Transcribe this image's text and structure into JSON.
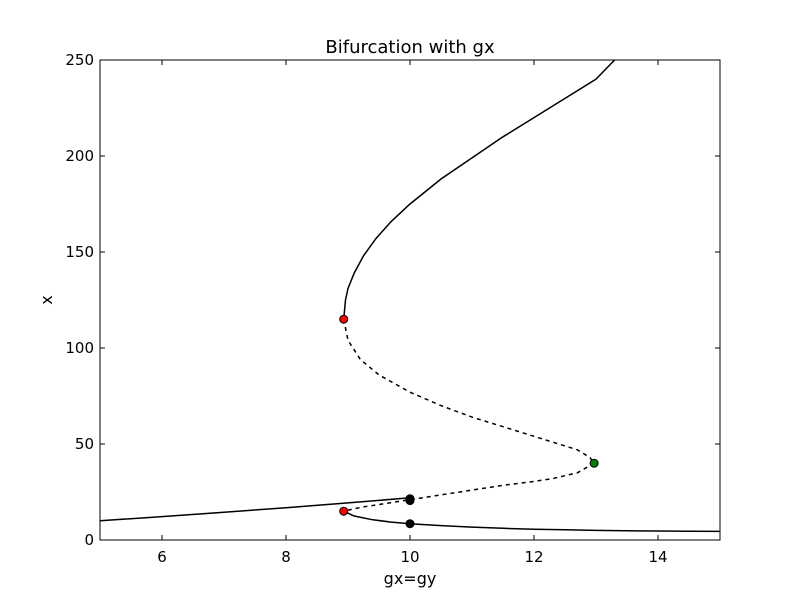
{
  "chart_data": {
    "type": "line",
    "title": "Bifurcation with gx",
    "xlabel": "gx=gy",
    "ylabel": "x",
    "xlim": [
      5,
      15
    ],
    "ylim": [
      0,
      250
    ],
    "xticks": [
      6,
      8,
      10,
      12,
      14
    ],
    "yticks": [
      0,
      50,
      100,
      150,
      200,
      250
    ],
    "grid": false,
    "series": [
      {
        "style": "solid",
        "x": [
          8.93,
          8.96,
          9.0,
          9.1,
          9.25,
          9.45,
          9.7,
          10.0,
          10.5,
          11.0,
          11.5,
          12.0,
          12.5,
          13.0,
          13.3
        ],
        "y": [
          115,
          125,
          131,
          139,
          148,
          157,
          166,
          175,
          188,
          199,
          210,
          220,
          230,
          240,
          250
        ]
      },
      {
        "style": "dashed",
        "x": [
          8.93,
          9.0,
          9.2,
          9.5,
          10.0,
          10.5,
          11.0,
          11.5,
          12.0,
          12.4,
          12.7,
          12.9,
          12.97
        ],
        "y": [
          115,
          104,
          94,
          86,
          77,
          70,
          64,
          59,
          54,
          50,
          47,
          43,
          40
        ]
      },
      {
        "style": "dashed",
        "x": [
          12.97,
          12.7,
          12.3,
          12.0,
          11.5,
          11.0,
          10.5,
          10.0,
          9.5,
          9.2,
          8.93
        ],
        "y": [
          40,
          35,
          32,
          30.5,
          28.5,
          26,
          23.5,
          21,
          18.5,
          17,
          15
        ]
      },
      {
        "style": "solid",
        "x": [
          8.93,
          9.1,
          9.4,
          9.7,
          10.0,
          10.5,
          11.0,
          11.5,
          12.0,
          12.5,
          13.0,
          13.5,
          14.0,
          14.5,
          15.0
        ],
        "y": [
          15,
          12.5,
          10.5,
          9.3,
          8.5,
          7.5,
          6.7,
          6.1,
          5.6,
          5.3,
          5.0,
          4.8,
          4.7,
          4.6,
          4.5
        ]
      },
      {
        "style": "solid",
        "x": [
          5,
          6,
          7,
          8,
          9,
          10
        ],
        "y": [
          10,
          12.2,
          14.5,
          16.8,
          19.3,
          22
        ]
      }
    ],
    "markers": [
      {
        "x": 8.93,
        "y": 115,
        "color": "#ff0000"
      },
      {
        "x": 8.93,
        "y": 15,
        "color": "#ff0000"
      },
      {
        "x": 12.97,
        "y": 40,
        "color": "#008000"
      },
      {
        "x": 10.0,
        "y": 21.5,
        "color": "#000000"
      },
      {
        "x": 10.0,
        "y": 20.5,
        "color": "#000000"
      },
      {
        "x": 10.0,
        "y": 8.5,
        "color": "#000000"
      }
    ]
  }
}
